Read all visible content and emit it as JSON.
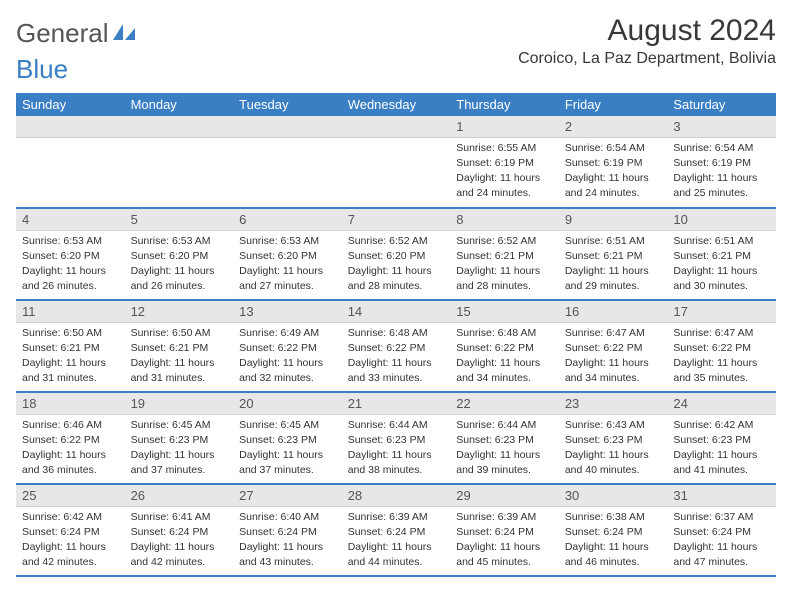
{
  "logo": {
    "text1": "General",
    "text2": "Blue"
  },
  "header": {
    "title": "August 2024",
    "subtitle": "Coroico, La Paz Department, Bolivia"
  },
  "columns": [
    "Sunday",
    "Monday",
    "Tuesday",
    "Wednesday",
    "Thursday",
    "Friday",
    "Saturday"
  ],
  "colors": {
    "accent": "#3a7fc4",
    "header_bg": "#e7e7e7"
  },
  "weeks": [
    [
      null,
      null,
      null,
      null,
      {
        "d": "1",
        "sr": "6:55 AM",
        "ss": "6:19 PM",
        "dl": "11 hours and 24 minutes."
      },
      {
        "d": "2",
        "sr": "6:54 AM",
        "ss": "6:19 PM",
        "dl": "11 hours and 24 minutes."
      },
      {
        "d": "3",
        "sr": "6:54 AM",
        "ss": "6:19 PM",
        "dl": "11 hours and 25 minutes."
      }
    ],
    [
      {
        "d": "4",
        "sr": "6:53 AM",
        "ss": "6:20 PM",
        "dl": "11 hours and 26 minutes."
      },
      {
        "d": "5",
        "sr": "6:53 AM",
        "ss": "6:20 PM",
        "dl": "11 hours and 26 minutes."
      },
      {
        "d": "6",
        "sr": "6:53 AM",
        "ss": "6:20 PM",
        "dl": "11 hours and 27 minutes."
      },
      {
        "d": "7",
        "sr": "6:52 AM",
        "ss": "6:20 PM",
        "dl": "11 hours and 28 minutes."
      },
      {
        "d": "8",
        "sr": "6:52 AM",
        "ss": "6:21 PM",
        "dl": "11 hours and 28 minutes."
      },
      {
        "d": "9",
        "sr": "6:51 AM",
        "ss": "6:21 PM",
        "dl": "11 hours and 29 minutes."
      },
      {
        "d": "10",
        "sr": "6:51 AM",
        "ss": "6:21 PM",
        "dl": "11 hours and 30 minutes."
      }
    ],
    [
      {
        "d": "11",
        "sr": "6:50 AM",
        "ss": "6:21 PM",
        "dl": "11 hours and 31 minutes."
      },
      {
        "d": "12",
        "sr": "6:50 AM",
        "ss": "6:21 PM",
        "dl": "11 hours and 31 minutes."
      },
      {
        "d": "13",
        "sr": "6:49 AM",
        "ss": "6:22 PM",
        "dl": "11 hours and 32 minutes."
      },
      {
        "d": "14",
        "sr": "6:48 AM",
        "ss": "6:22 PM",
        "dl": "11 hours and 33 minutes."
      },
      {
        "d": "15",
        "sr": "6:48 AM",
        "ss": "6:22 PM",
        "dl": "11 hours and 34 minutes."
      },
      {
        "d": "16",
        "sr": "6:47 AM",
        "ss": "6:22 PM",
        "dl": "11 hours and 34 minutes."
      },
      {
        "d": "17",
        "sr": "6:47 AM",
        "ss": "6:22 PM",
        "dl": "11 hours and 35 minutes."
      }
    ],
    [
      {
        "d": "18",
        "sr": "6:46 AM",
        "ss": "6:22 PM",
        "dl": "11 hours and 36 minutes."
      },
      {
        "d": "19",
        "sr": "6:45 AM",
        "ss": "6:23 PM",
        "dl": "11 hours and 37 minutes."
      },
      {
        "d": "20",
        "sr": "6:45 AM",
        "ss": "6:23 PM",
        "dl": "11 hours and 37 minutes."
      },
      {
        "d": "21",
        "sr": "6:44 AM",
        "ss": "6:23 PM",
        "dl": "11 hours and 38 minutes."
      },
      {
        "d": "22",
        "sr": "6:44 AM",
        "ss": "6:23 PM",
        "dl": "11 hours and 39 minutes."
      },
      {
        "d": "23",
        "sr": "6:43 AM",
        "ss": "6:23 PM",
        "dl": "11 hours and 40 minutes."
      },
      {
        "d": "24",
        "sr": "6:42 AM",
        "ss": "6:23 PM",
        "dl": "11 hours and 41 minutes."
      }
    ],
    [
      {
        "d": "25",
        "sr": "6:42 AM",
        "ss": "6:24 PM",
        "dl": "11 hours and 42 minutes."
      },
      {
        "d": "26",
        "sr": "6:41 AM",
        "ss": "6:24 PM",
        "dl": "11 hours and 42 minutes."
      },
      {
        "d": "27",
        "sr": "6:40 AM",
        "ss": "6:24 PM",
        "dl": "11 hours and 43 minutes."
      },
      {
        "d": "28",
        "sr": "6:39 AM",
        "ss": "6:24 PM",
        "dl": "11 hours and 44 minutes."
      },
      {
        "d": "29",
        "sr": "6:39 AM",
        "ss": "6:24 PM",
        "dl": "11 hours and 45 minutes."
      },
      {
        "d": "30",
        "sr": "6:38 AM",
        "ss": "6:24 PM",
        "dl": "11 hours and 46 minutes."
      },
      {
        "d": "31",
        "sr": "6:37 AM",
        "ss": "6:24 PM",
        "dl": "11 hours and 47 minutes."
      }
    ]
  ],
  "labels": {
    "sunrise": "Sunrise:",
    "sunset": "Sunset:",
    "daylight": "Daylight:"
  }
}
